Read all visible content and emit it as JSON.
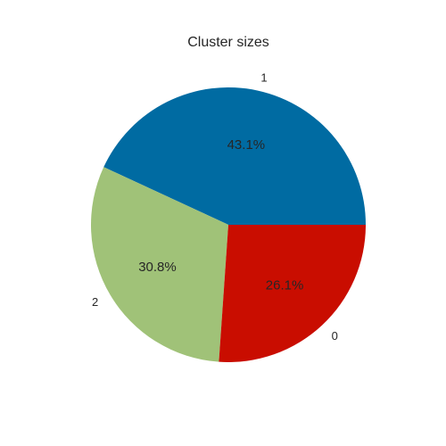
{
  "chart_data": {
    "type": "pie",
    "title": "Cluster sizes",
    "labels": [
      "1",
      "2",
      "0"
    ],
    "values": [
      43.1,
      30.8,
      26.1
    ],
    "percent_labels": [
      "43.1%",
      "30.8%",
      "26.1%"
    ],
    "colors": [
      "#006ba2",
      "#a0c278",
      "#c90d00"
    ],
    "start_angle_deg": 0,
    "direction": "counterclockwise"
  }
}
